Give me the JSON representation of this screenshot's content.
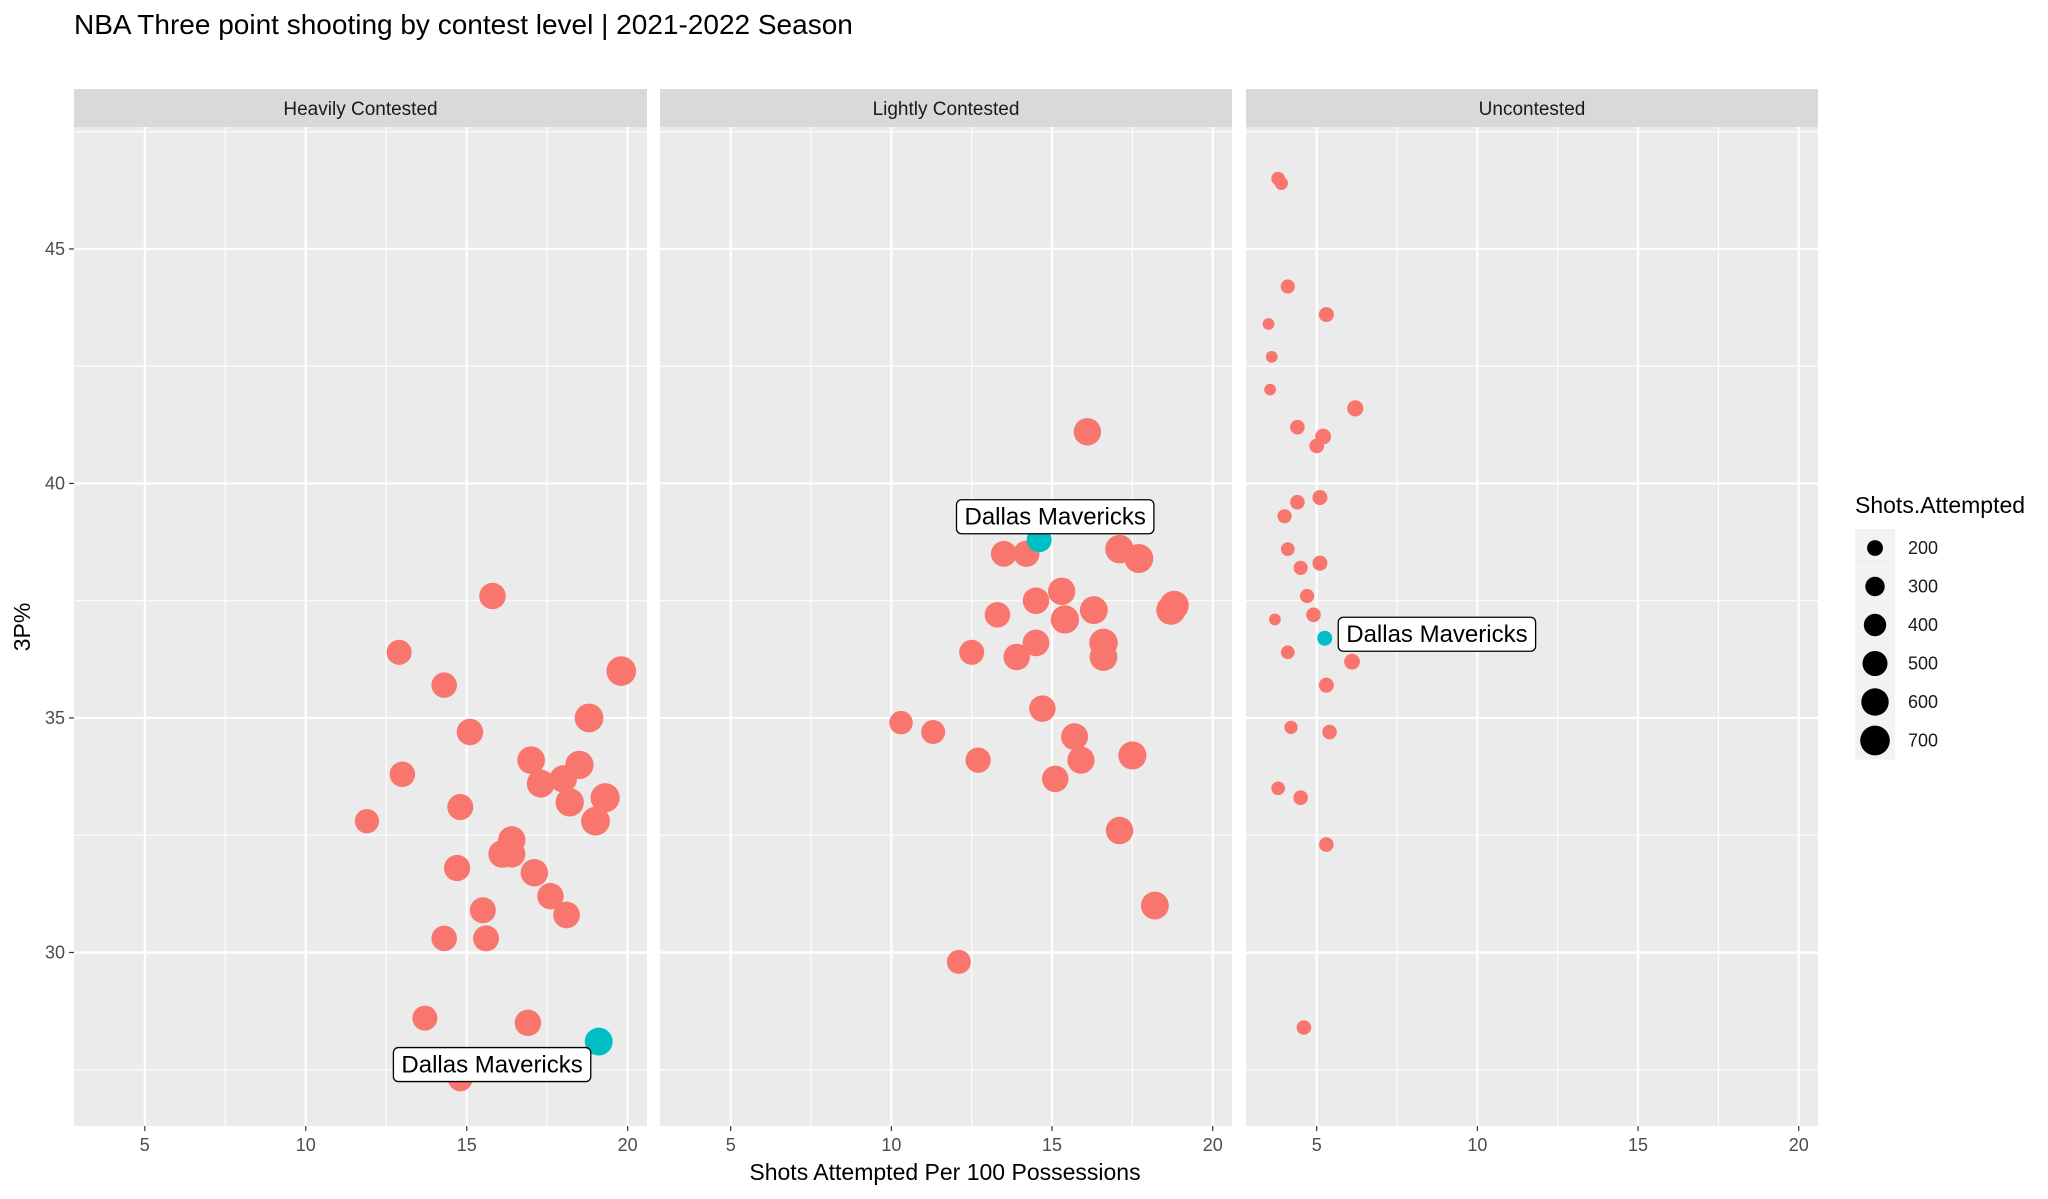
{
  "chart_data": {
    "type": "scatter",
    "title": "NBA Three point shooting by contest level | 2021-2022 Season",
    "xlabel": "Shots Attempted Per 100 Possessions",
    "ylabel": "3P%",
    "xlim": [
      2.8,
      20.6
    ],
    "ylim": [
      26.3,
      47.6
    ],
    "x_ticks": [
      5,
      10,
      15,
      20
    ],
    "y_ticks": [
      30,
      35,
      40,
      45
    ],
    "colors": {
      "other": "#F8766D",
      "highlight": "#00BFC4",
      "panel_bg": "#EBEBEB",
      "strip_bg": "#D9D9D9",
      "grid": "#FFFFFF"
    },
    "highlight_label": "Dallas Mavericks",
    "legend": {
      "title": "Shots.Attempted",
      "entries": [
        200,
        300,
        400,
        500,
        600,
        700
      ]
    },
    "facets": [
      {
        "name": "Heavily Contested",
        "highlight": {
          "x": 19.1,
          "y": 28.1,
          "size": 620
        },
        "points": [
          [
            15.8,
            37.6,
            560
          ],
          [
            12.9,
            36.4,
            500
          ],
          [
            14.3,
            35.7,
            520
          ],
          [
            15.1,
            34.7,
            560
          ],
          [
            19.8,
            36.0,
            700
          ],
          [
            18.8,
            35.0,
            660
          ],
          [
            13.0,
            33.8,
            520
          ],
          [
            17.0,
            34.1,
            610
          ],
          [
            18.5,
            34.0,
            640
          ],
          [
            18.0,
            33.7,
            600
          ],
          [
            17.3,
            33.6,
            620
          ],
          [
            19.3,
            33.3,
            680
          ],
          [
            11.9,
            32.8,
            470
          ],
          [
            14.8,
            33.1,
            540
          ],
          [
            18.2,
            33.2,
            640
          ],
          [
            19.0,
            32.8,
            660
          ],
          [
            16.4,
            32.4,
            600
          ],
          [
            16.1,
            32.1,
            610
          ],
          [
            16.4,
            32.1,
            590
          ],
          [
            14.7,
            31.8,
            550
          ],
          [
            17.1,
            31.7,
            600
          ],
          [
            17.6,
            31.2,
            560
          ],
          [
            18.1,
            30.8,
            570
          ],
          [
            15.5,
            30.9,
            540
          ],
          [
            14.3,
            30.3,
            520
          ],
          [
            15.6,
            30.3,
            540
          ],
          [
            13.7,
            28.6,
            500
          ],
          [
            16.9,
            28.5,
            560
          ],
          [
            14.8,
            27.3,
            480
          ]
        ]
      },
      {
        "name": "Lightly Contested",
        "highlight": {
          "x": 14.6,
          "y": 38.8,
          "size": 500
        },
        "points": [
          [
            16.1,
            41.1,
            600
          ],
          [
            13.5,
            38.5,
            530
          ],
          [
            14.2,
            38.5,
            550
          ],
          [
            17.1,
            38.6,
            650
          ],
          [
            17.7,
            38.4,
            670
          ],
          [
            15.3,
            37.7,
            600
          ],
          [
            14.5,
            37.5,
            560
          ],
          [
            16.3,
            37.3,
            620
          ],
          [
            18.8,
            37.4,
            680
          ],
          [
            18.7,
            37.3,
            690
          ],
          [
            13.3,
            37.2,
            520
          ],
          [
            15.4,
            37.1,
            640
          ],
          [
            16.6,
            36.6,
            650
          ],
          [
            14.5,
            36.6,
            570
          ],
          [
            16.6,
            36.3,
            620
          ],
          [
            12.5,
            36.4,
            500
          ],
          [
            13.9,
            36.3,
            560
          ],
          [
            14.7,
            35.2,
            560
          ],
          [
            10.3,
            34.9,
            440
          ],
          [
            11.3,
            34.7,
            460
          ],
          [
            15.7,
            34.6,
            580
          ],
          [
            17.5,
            34.2,
            630
          ],
          [
            12.7,
            34.1,
            510
          ],
          [
            15.9,
            34.1,
            590
          ],
          [
            15.1,
            33.7,
            560
          ],
          [
            17.1,
            32.6,
            600
          ],
          [
            18.2,
            31.0,
            620
          ],
          [
            12.1,
            29.8,
            460
          ]
        ]
      },
      {
        "name": "Uncontested",
        "highlight": {
          "x": 5.25,
          "y": 36.7,
          "size": 180
        },
        "points": [
          [
            3.8,
            46.5,
            150
          ],
          [
            3.9,
            46.4,
            140
          ],
          [
            4.1,
            44.2,
            160
          ],
          [
            5.3,
            43.6,
            180
          ],
          [
            3.5,
            43.4,
            110
          ],
          [
            3.6,
            42.7,
            110
          ],
          [
            3.55,
            42.0,
            110
          ],
          [
            6.2,
            41.6,
            210
          ],
          [
            4.4,
            41.2,
            170
          ],
          [
            5.2,
            41.0,
            200
          ],
          [
            5.0,
            40.8,
            170
          ],
          [
            5.1,
            39.7,
            180
          ],
          [
            4.4,
            39.6,
            170
          ],
          [
            4.0,
            39.3,
            160
          ],
          [
            4.1,
            38.6,
            150
          ],
          [
            5.1,
            38.3,
            180
          ],
          [
            4.5,
            38.2,
            160
          ],
          [
            4.7,
            37.6,
            160
          ],
          [
            4.9,
            37.2,
            170
          ],
          [
            3.7,
            37.1,
            110
          ],
          [
            4.1,
            36.4,
            150
          ],
          [
            6.1,
            36.2,
            200
          ],
          [
            5.3,
            35.7,
            180
          ],
          [
            4.2,
            34.8,
            140
          ],
          [
            5.4,
            34.7,
            170
          ],
          [
            3.8,
            33.5,
            150
          ],
          [
            4.5,
            33.3,
            170
          ],
          [
            5.3,
            32.3,
            170
          ],
          [
            4.6,
            28.4,
            170
          ]
        ]
      }
    ]
  }
}
